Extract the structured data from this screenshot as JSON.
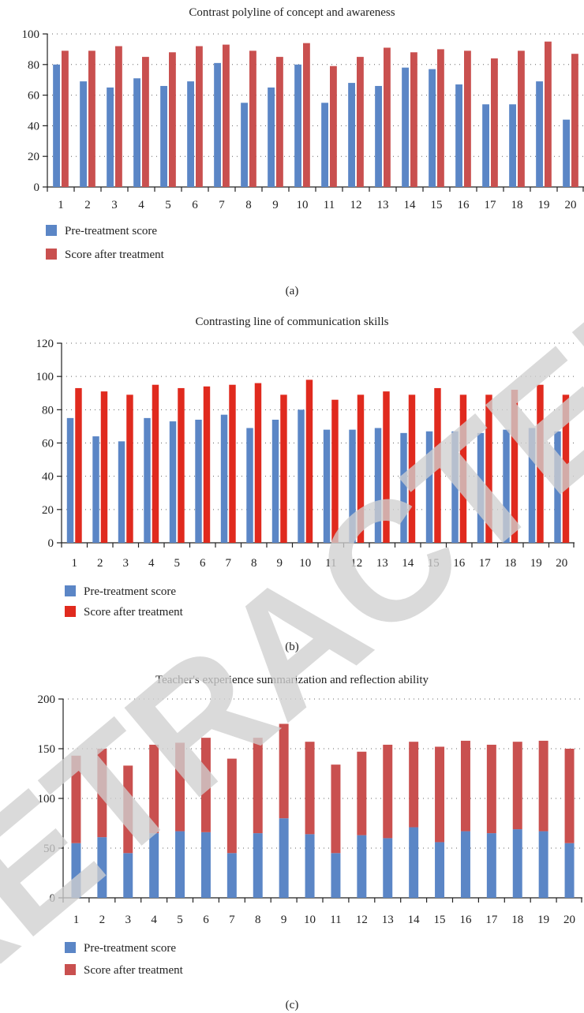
{
  "colors": {
    "pre": "#5b86c6",
    "after_a": "#c9504f",
    "after_b": "#e02a1e",
    "after_c": "#c9504f"
  },
  "watermark": {
    "text": "RETRACTED",
    "color": "#d0d0d0"
  },
  "chart_data": [
    {
      "type": "bar",
      "stacking": "grouped",
      "title": "Contrast polyline of concept and awareness",
      "panel_label": "(a)",
      "categories": [
        "1",
        "2",
        "3",
        "4",
        "5",
        "6",
        "7",
        "8",
        "9",
        "10",
        "11",
        "12",
        "13",
        "14",
        "15",
        "16",
        "17",
        "18",
        "19",
        "20"
      ],
      "series": [
        {
          "name": "Pre-treatment score",
          "color": "#5b86c6",
          "values": [
            80,
            69,
            65,
            71,
            66,
            69,
            81,
            55,
            65,
            80,
            55,
            68,
            66,
            78,
            77,
            67,
            54,
            54,
            69,
            44
          ]
        },
        {
          "name": "Score after treatment",
          "color": "#c9504f",
          "values": [
            89,
            89,
            92,
            85,
            88,
            92,
            93,
            89,
            85,
            94,
            79,
            85,
            91,
            88,
            90,
            89,
            84,
            89,
            95,
            87
          ]
        }
      ],
      "yticks": [
        0,
        20,
        40,
        60,
        80,
        100
      ],
      "ylim": [
        0,
        100
      ],
      "grid": true,
      "legend": "bottom-left"
    },
    {
      "type": "bar",
      "stacking": "grouped",
      "title": "Contrasting line of communication skills",
      "panel_label": "(b)",
      "categories": [
        "1",
        "2",
        "3",
        "4",
        "5",
        "6",
        "7",
        "8",
        "9",
        "10",
        "11",
        "12",
        "13",
        "14",
        "15",
        "16",
        "17",
        "18",
        "19",
        "20"
      ],
      "series": [
        {
          "name": "Pre-treatment score",
          "color": "#5b86c6",
          "values": [
            75,
            64,
            61,
            75,
            73,
            74,
            77,
            69,
            74,
            80,
            68,
            68,
            69,
            66,
            67,
            67,
            66,
            68,
            69,
            67
          ]
        },
        {
          "name": "Score after treatment",
          "color": "#e02a1e",
          "values": [
            93,
            91,
            89,
            95,
            93,
            94,
            95,
            96,
            89,
            98,
            86,
            89,
            91,
            89,
            93,
            89,
            89,
            92,
            95,
            89
          ]
        }
      ],
      "yticks": [
        0,
        20,
        40,
        60,
        80,
        100,
        120
      ],
      "ylim": [
        0,
        120
      ],
      "grid": true,
      "legend": "bottom-left"
    },
    {
      "type": "bar",
      "stacking": "stacked",
      "title": "Teacher's experience summarization and reflection ability",
      "panel_label": "(c)",
      "categories": [
        "1",
        "2",
        "3",
        "4",
        "5",
        "6",
        "7",
        "8",
        "9",
        "10",
        "11",
        "12",
        "13",
        "14",
        "15",
        "16",
        "17",
        "18",
        "19",
        "20"
      ],
      "series": [
        {
          "name": "Pre-treatment score",
          "color": "#5b86c6",
          "values": [
            55,
            61,
            45,
            65,
            67,
            66,
            45,
            65,
            80,
            64,
            45,
            63,
            60,
            71,
            56,
            67,
            65,
            69,
            67,
            55
          ]
        },
        {
          "name": "Score after treatment",
          "color": "#c9504f",
          "values": [
            88,
            89,
            88,
            89,
            89,
            95,
            95,
            96,
            95,
            93,
            89,
            84,
            94,
            86,
            96,
            91,
            89,
            88,
            91,
            95
          ]
        }
      ],
      "yticks": [
        0,
        50,
        100,
        150,
        200
      ],
      "ylim": [
        0,
        200
      ],
      "grid": true,
      "legend": "bottom-left"
    }
  ]
}
